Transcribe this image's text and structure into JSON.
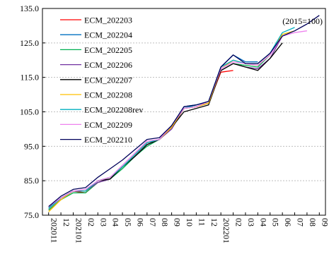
{
  "chart_data": {
    "type": "line",
    "note": "(2015=100)",
    "x": [
      "202011",
      "12",
      "202101",
      "02",
      "03",
      "04",
      "05",
      "06",
      "07",
      "08",
      "09",
      "10",
      "11",
      "12",
      "202201",
      "02",
      "03",
      "04",
      "05",
      "06",
      "07",
      "08",
      "09"
    ],
    "ylim": [
      75,
      135
    ],
    "yticks": [
      75.0,
      85.0,
      95.0,
      105.0,
      115.0,
      125.0,
      135.0
    ],
    "ytick_labels": [
      "75.0",
      "85.0",
      "95.0",
      "105.0",
      "115.0",
      "125.0",
      "135.0"
    ],
    "grid": true,
    "legend_position": "top-left",
    "series": [
      {
        "name": "ECM_202203",
        "color": "#ff0000",
        "values": [
          76.5,
          79.5,
          82.0,
          81.5,
          84.5,
          85.5,
          89.0,
          92.5,
          96.0,
          97.0,
          100.5,
          106.0,
          106.5,
          107.5,
          116.5,
          117.0,
          null,
          null,
          null,
          null,
          null,
          null,
          null
        ]
      },
      {
        "name": "ECM_202204",
        "color": "#0070c0",
        "values": [
          77.0,
          80.0,
          82.0,
          82.0,
          85.0,
          86.0,
          89.0,
          92.5,
          96.0,
          97.0,
          101.0,
          106.5,
          107.0,
          108.0,
          118.0,
          121.5,
          119.5,
          119.5,
          null,
          null,
          null,
          null,
          null
        ]
      },
      {
        "name": "ECM_202205",
        "color": "#00b050",
        "values": [
          76.5,
          79.5,
          81.5,
          81.5,
          84.5,
          85.5,
          88.5,
          92.0,
          95.0,
          97.0,
          100.5,
          106.0,
          106.5,
          107.5,
          117.0,
          119.0,
          118.5,
          118.0,
          121.5,
          null,
          null,
          null,
          null
        ]
      },
      {
        "name": "ECM_202206",
        "color": "#7030a0",
        "values": [
          77.0,
          80.0,
          82.0,
          82.0,
          84.5,
          85.5,
          89.0,
          92.0,
          95.5,
          97.0,
          100.0,
          106.0,
          106.5,
          107.5,
          117.0,
          119.0,
          118.0,
          117.5,
          120.5,
          127.0,
          null,
          null,
          null
        ]
      },
      {
        "name": "ECM_202207",
        "color": "#000000",
        "values": [
          77.0,
          80.0,
          82.0,
          82.0,
          85.0,
          85.5,
          89.0,
          92.0,
          95.5,
          97.0,
          100.5,
          105.0,
          106.0,
          107.0,
          117.0,
          119.0,
          118.0,
          117.0,
          120.5,
          125.0,
          null,
          null,
          null
        ]
      },
      {
        "name": "ECM_202208",
        "color": "#ffc000",
        "values": [
          76.0,
          79.5,
          82.0,
          82.0,
          85.0,
          86.0,
          89.0,
          92.5,
          96.0,
          97.0,
          100.5,
          106.0,
          106.5,
          107.5,
          117.5,
          120.0,
          119.0,
          118.5,
          121.5,
          127.5,
          128.5,
          null,
          null
        ]
      },
      {
        "name": "ECM_202208rev",
        "color": "#00b0c0",
        "values": [
          77.0,
          80.0,
          82.0,
          82.0,
          85.0,
          86.0,
          89.0,
          92.5,
          96.0,
          97.0,
          101.0,
          106.0,
          107.0,
          108.0,
          118.0,
          120.0,
          119.0,
          119.0,
          122.0,
          128.0,
          129.5,
          null,
          null
        ]
      },
      {
        "name": "ECM_202209",
        "color": "#ee82ee",
        "values": [
          77.5,
          80.0,
          82.0,
          82.5,
          85.0,
          86.0,
          89.5,
          93.0,
          96.5,
          97.0,
          101.0,
          106.0,
          106.5,
          108.0,
          117.5,
          119.5,
          119.0,
          118.5,
          121.5,
          127.0,
          128.0,
          128.5,
          null
        ]
      },
      {
        "name": "ECM_202210",
        "color": "#00005a",
        "values": [
          77.5,
          80.5,
          82.5,
          83.0,
          86.0,
          88.5,
          91.0,
          94.0,
          97.0,
          97.5,
          101.0,
          106.5,
          107.0,
          108.0,
          118.0,
          121.5,
          119.0,
          119.0,
          122.0,
          127.0,
          128.5,
          130.5,
          133.0
        ]
      }
    ]
  }
}
